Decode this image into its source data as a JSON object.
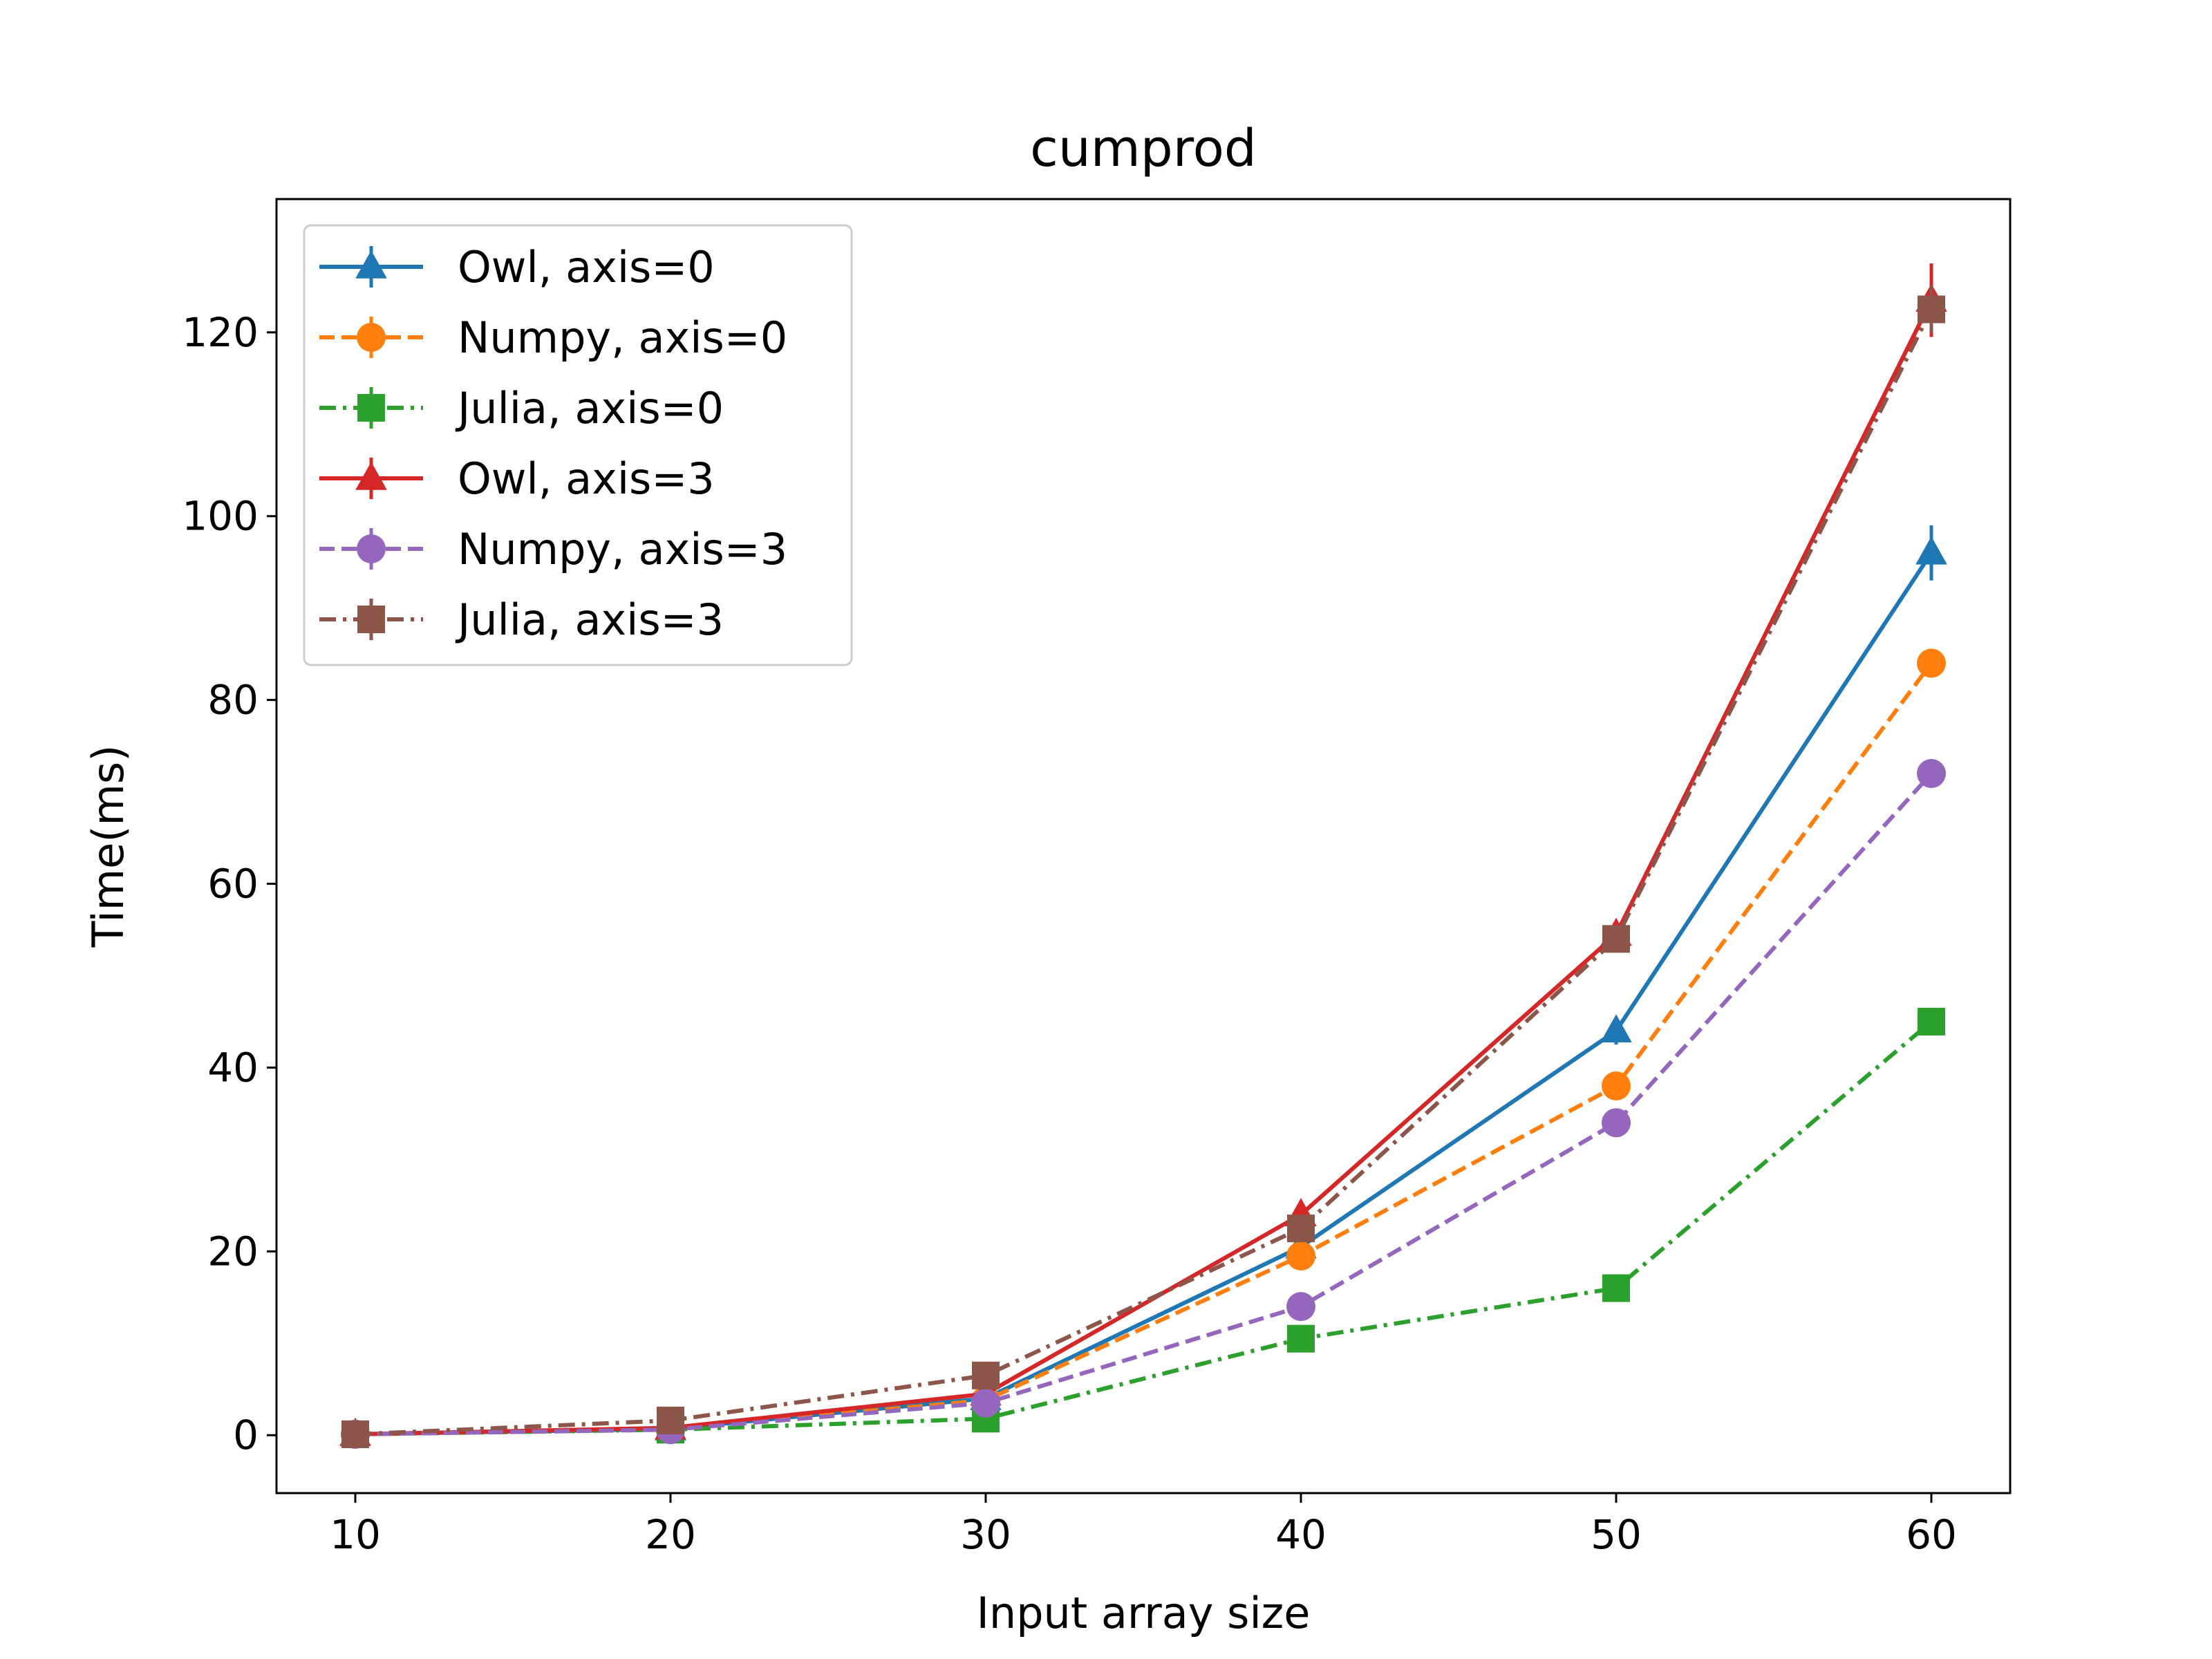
{
  "chart_data": {
    "type": "line",
    "title": "cumprod",
    "xlabel": "Input array size",
    "ylabel": "Time(ms)",
    "x": [
      10,
      20,
      30,
      40,
      50,
      60
    ],
    "xticks": [
      "10",
      "20",
      "30",
      "40",
      "50",
      "60"
    ],
    "yticks": [
      "0",
      "20",
      "40",
      "60",
      "80",
      "100",
      "120"
    ],
    "xlim": [
      7.5,
      62.5
    ],
    "ylim": [
      -6.3,
      134.5
    ],
    "grid": false,
    "legend_position": "top-left",
    "series": [
      {
        "name": "Owl, axis=0",
        "values": [
          0.1,
          0.7,
          4.0,
          20.5,
          44.0,
          96.0
        ],
        "error": [
          0.1,
          0.1,
          0.3,
          1.0,
          1.5,
          3.0
        ],
        "color": "#1f77b4",
        "linestyle": "solid",
        "marker": "triangle"
      },
      {
        "name": "Numpy, axis=0",
        "values": [
          0.1,
          0.7,
          3.8,
          19.5,
          38.0,
          84.0
        ],
        "error": [
          0.1,
          0.1,
          0.2,
          0.8,
          1.0,
          1.0
        ],
        "color": "#ff7f0e",
        "linestyle": "dashed",
        "marker": "circle"
      },
      {
        "name": "Julia, axis=0",
        "values": [
          0.1,
          0.6,
          1.8,
          10.5,
          16.0,
          45.0
        ],
        "error": [
          0.1,
          0.1,
          0.2,
          0.5,
          0.6,
          0.8
        ],
        "color": "#2ca02c",
        "linestyle": "dashdot",
        "marker": "square"
      },
      {
        "name": "Owl, axis=3",
        "values": [
          0.1,
          0.8,
          4.5,
          24.0,
          54.5,
          123.5
        ],
        "error": [
          0.1,
          0.1,
          0.3,
          1.5,
          1.0,
          4.0
        ],
        "color": "#d62728",
        "linestyle": "solid",
        "marker": "triangle"
      },
      {
        "name": "Numpy, axis=3",
        "values": [
          0.1,
          0.6,
          3.5,
          14.0,
          34.0,
          72.0
        ],
        "error": [
          0.1,
          0.1,
          0.2,
          0.5,
          0.8,
          0.8
        ],
        "color": "#9467bd",
        "linestyle": "dashed",
        "marker": "circle"
      },
      {
        "name": "Julia, axis=3",
        "values": [
          0.1,
          1.6,
          6.5,
          22.5,
          54.0,
          122.5
        ],
        "error": [
          0.1,
          0.1,
          0.3,
          1.0,
          1.0,
          2.5
        ],
        "color": "#8c564b",
        "linestyle": "dashdot",
        "marker": "square"
      }
    ]
  }
}
